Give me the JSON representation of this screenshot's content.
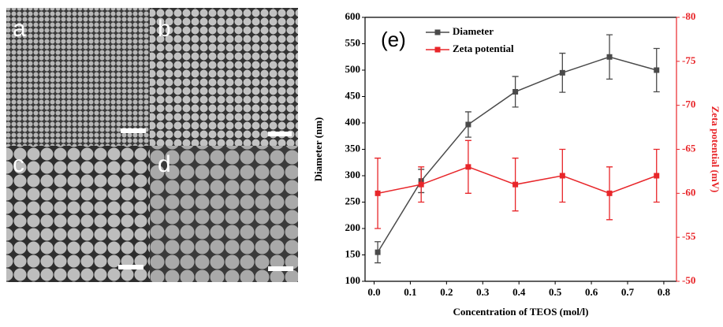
{
  "image_panels": {
    "labels": [
      "a",
      "b",
      "c",
      "d"
    ]
  },
  "chart_data": {
    "type": "line",
    "annotation": "(e)",
    "xlabel": "Concentration of TEOS (mol/l)",
    "ylabel": "Diameter (nm)",
    "y2label": "Zeta potential (mV)",
    "x": [
      0.01,
      0.13,
      0.26,
      0.39,
      0.52,
      0.65,
      0.78
    ],
    "series": [
      {
        "name": "Diameter",
        "color": "#4a4a4a",
        "values": [
          155,
          290,
          397,
          459,
          495,
          525,
          500
        ],
        "errors": [
          20,
          22,
          24,
          29,
          37,
          42,
          41
        ]
      },
      {
        "name": "Zeta potential",
        "color": "#e8262a",
        "axis": "y2",
        "values": [
          -60,
          -61,
          -63,
          -61,
          -62,
          -60,
          -62
        ],
        "errors": [
          4,
          2,
          3,
          3,
          3,
          3,
          3
        ]
      }
    ],
    "xlim": [
      -0.025,
      0.835
    ],
    "xticks": [
      {
        "value": 0,
        "label": "0.0"
      },
      0.1,
      0.2,
      0.3,
      0.4,
      0.5,
      0.6,
      0.7,
      0.8
    ],
    "ylim": [
      100,
      600
    ],
    "yticks": [
      100,
      150,
      200,
      250,
      300,
      350,
      400,
      450,
      500,
      550,
      600
    ],
    "y2lim": [
      -50,
      -80
    ],
    "y2ticks": [
      -50,
      -55,
      -60,
      -65,
      -70,
      -75,
      -80
    ],
    "legend": "upper-left",
    "grid": false
  }
}
